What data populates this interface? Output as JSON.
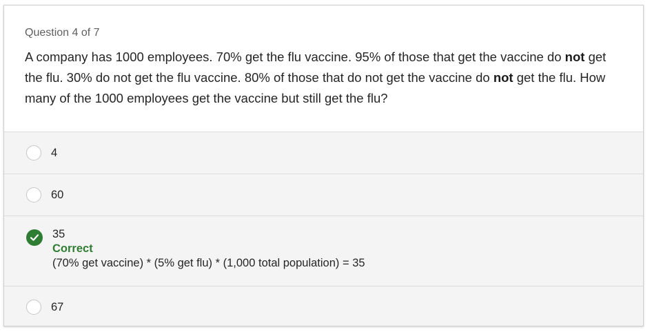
{
  "question": {
    "counter": "Question 4 of 7",
    "text_parts": [
      "A company has 1000 employees. 70% get the flu vaccine. 95% of those that get the vaccine do ",
      "not",
      " get the flu. 30% do not get the flu vaccine. 80% of those that do not get the vaccine do ",
      "not",
      " get the flu. How many of the 1000 employees get the vaccine but still get the flu?"
    ]
  },
  "options": [
    {
      "label": "4",
      "selected": false
    },
    {
      "label": "60",
      "selected": false
    },
    {
      "label": "35",
      "selected": true,
      "feedback_title": "Correct",
      "feedback_text": "(70% get vaccine) * (5% get flu) * (1,000 total population) = 35"
    },
    {
      "label": "67",
      "selected": false
    }
  ],
  "colors": {
    "correct": "#2e7d32",
    "option_bg": "#f4f4f4"
  },
  "icons": {
    "selected": "checkmark-circle-icon",
    "unselected": "radio-empty-icon"
  }
}
